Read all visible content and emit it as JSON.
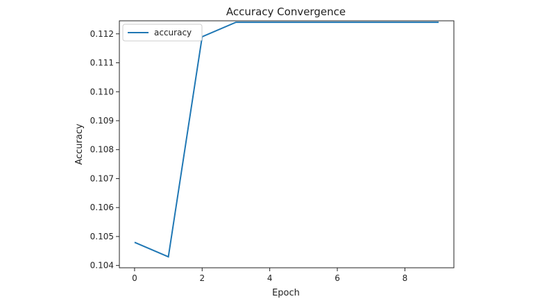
{
  "chart_data": {
    "type": "line",
    "title": "Accuracy Convergence",
    "xlabel": "Epoch",
    "ylabel": "Accuracy",
    "x": [
      0,
      1,
      2,
      3,
      4,
      5,
      6,
      7,
      8,
      9
    ],
    "series": [
      {
        "name": "accuracy",
        "values": [
          0.1048,
          0.1043,
          0.1119,
          0.1124,
          0.1124,
          0.1124,
          0.1124,
          0.1124,
          0.1124,
          0.1124
        ],
        "color": "#1f77b4"
      }
    ],
    "xlim": [
      -0.45,
      9.45
    ],
    "ylim": [
      0.10392,
      0.11245
    ],
    "xticks": [
      0,
      2,
      4,
      6,
      8
    ],
    "xtick_labels": [
      "0",
      "2",
      "4",
      "6",
      "8"
    ],
    "yticks": [
      0.104,
      0.105,
      0.106,
      0.107,
      0.108,
      0.109,
      0.11,
      0.111,
      0.112
    ],
    "ytick_labels": [
      "0.104",
      "0.105",
      "0.106",
      "0.107",
      "0.108",
      "0.109",
      "0.110",
      "0.111",
      "0.112"
    ],
    "grid": false,
    "legend_position": "top-left"
  }
}
